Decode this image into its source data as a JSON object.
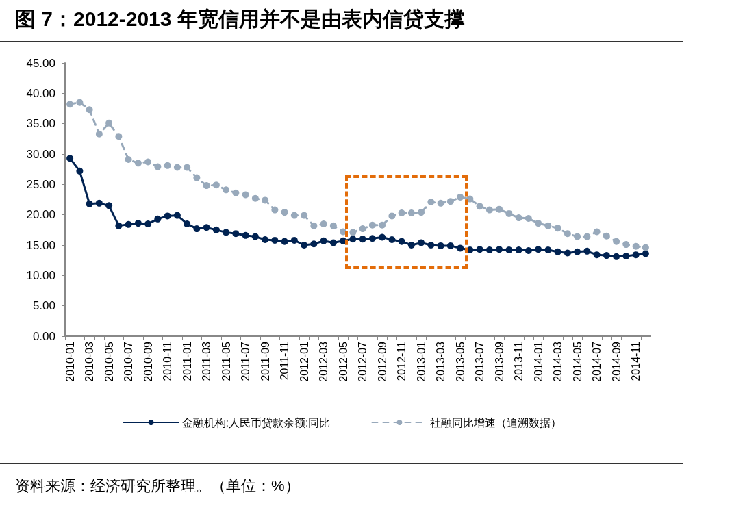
{
  "chart_data": {
    "type": "line",
    "title": "图 7：2012-2013 年宽信用并不是由表内信贷支撑",
    "annotations": [
      "资料来源：经济研究所整理。（单位：%）"
    ],
    "categories": [
      "2010-01",
      null,
      "2010-03",
      null,
      "2010-05",
      null,
      "2010-07",
      null,
      "2010-09",
      null,
      "2010-11",
      null,
      "2011-01",
      null,
      "2011-03",
      null,
      "2011-05",
      null,
      "2011-07",
      null,
      "2011-09",
      null,
      "2011-11",
      null,
      "2012-01",
      null,
      "2012-03",
      null,
      "2012-05",
      null,
      "2012-07",
      null,
      "2012-09",
      null,
      "2012-11",
      null,
      "2013-01",
      null,
      "2013-03",
      null,
      "2013-05",
      null,
      "2013-07",
      null,
      "2013-09",
      null,
      "2013-11",
      null,
      "2014-01",
      null,
      "2014-03",
      null,
      "2014-05",
      null,
      "2014-07",
      null,
      "2014-09",
      null,
      "2014-11",
      null
    ],
    "series": [
      {
        "name": "金融机构:人民币贷款余额:同比",
        "color": "#002251",
        "line_style": "solid",
        "values": [
          29.3,
          27.2,
          21.8,
          21.9,
          21.5,
          18.2,
          18.4,
          18.6,
          18.5,
          19.3,
          19.8,
          19.9,
          18.5,
          17.7,
          17.9,
          17.5,
          17.1,
          16.9,
          16.6,
          16.4,
          15.9,
          15.8,
          15.6,
          15.8,
          15.0,
          15.2,
          15.7,
          15.4,
          15.7,
          16.0,
          16.0,
          16.1,
          16.3,
          15.9,
          15.6,
          15.0,
          15.4,
          15.0,
          14.9,
          14.9,
          14.5,
          14.2,
          14.3,
          14.2,
          14.3,
          14.2,
          14.2,
          14.1,
          14.3,
          14.2,
          13.9,
          13.7,
          13.9,
          14.0,
          13.4,
          13.3,
          13.1,
          13.2,
          13.4,
          13.6
        ]
      },
      {
        "name": "社融同比增速（追溯数据）",
        "color": "#98a9bb",
        "line_style": "dashed",
        "values": [
          38.2,
          38.5,
          37.3,
          33.3,
          35.1,
          32.9,
          29.1,
          28.5,
          28.7,
          27.9,
          28.1,
          27.8,
          27.8,
          26.1,
          24.8,
          24.9,
          24.1,
          23.6,
          23.3,
          22.7,
          22.4,
          20.8,
          20.4,
          19.9,
          19.9,
          18.2,
          18.5,
          18.2,
          17.2,
          17.1,
          17.7,
          18.3,
          18.3,
          19.8,
          20.3,
          20.3,
          20.4,
          22.1,
          21.9,
          22.2,
          22.9,
          22.6,
          21.4,
          20.8,
          20.9,
          20.2,
          19.5,
          19.4,
          18.6,
          18.2,
          17.8,
          16.9,
          16.4,
          16.4,
          17.2,
          16.5,
          15.6,
          15.1,
          14.8,
          14.6
        ]
      }
    ],
    "ylim": [
      0,
      45
    ],
    "yticks": [
      {
        "value": 0,
        "label": "0.00"
      },
      {
        "value": 5,
        "label": "5.00"
      },
      {
        "value": 10,
        "label": "10.00"
      },
      {
        "value": 15,
        "label": "15.00"
      },
      {
        "value": 20,
        "label": "20.00"
      },
      {
        "value": 25,
        "label": "25.00"
      },
      {
        "value": 30,
        "label": "30.00"
      },
      {
        "value": 35,
        "label": "35.00"
      },
      {
        "value": 40,
        "label": "40.00"
      },
      {
        "value": 45,
        "label": "45.00"
      }
    ],
    "grid": false,
    "legend": "bottom",
    "marker": "circle"
  }
}
